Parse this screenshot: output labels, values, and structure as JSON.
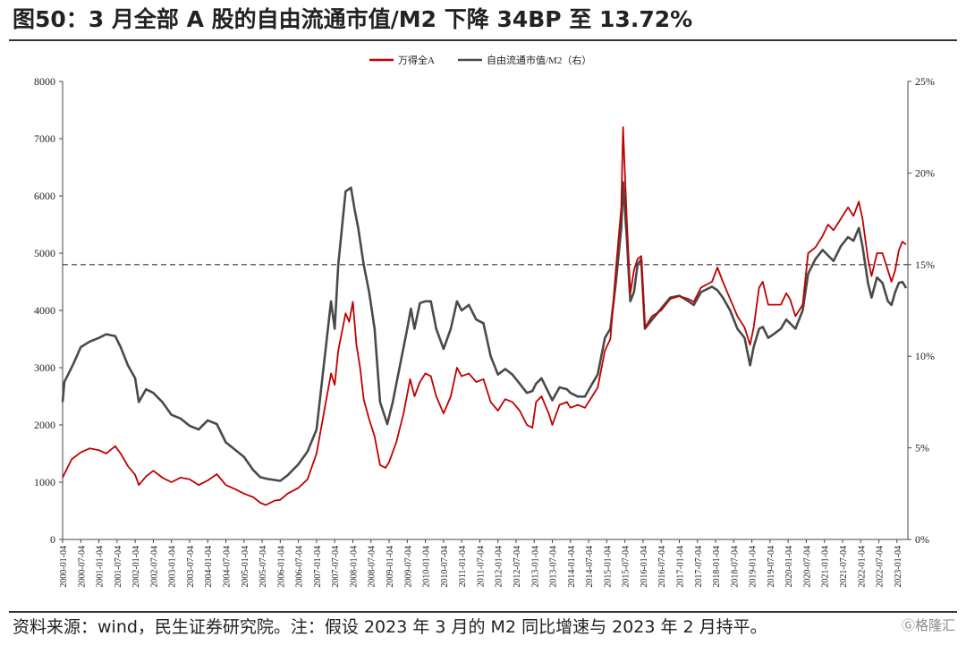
{
  "header": {
    "title": "图50：3 月全部 A 股的自由流通市值/M2 下降 34BP 至 13.72%"
  },
  "footer": {
    "source": "资料来源：wind，民生证券研究院。注：假设 2023 年 3 月的 M2 同比增速与 2023 年 2 月持平。"
  },
  "watermark": "格隆汇",
  "chart_data": {
    "type": "line",
    "title": "图50：3 月全部 A 股的自由流通市值/M2 下降 34BP 至 13.72%",
    "legend_position": "top-center",
    "colors": {
      "wind_a": "#c00000",
      "ratio": "#4a4a4a",
      "reference": "#333333"
    },
    "x_tick_labels": [
      "2000-01-04",
      "2000-07-04",
      "2001-01-04",
      "2001-07-04",
      "2002-01-04",
      "2002-07-04",
      "2003-01-04",
      "2003-07-04",
      "2004-01-04",
      "2004-07-04",
      "2005-01-04",
      "2005-07-04",
      "2006-01-04",
      "2006-07-04",
      "2007-01-04",
      "2007-07-04",
      "2008-01-04",
      "2008-07-04",
      "2009-01-04",
      "2009-07-04",
      "2010-01-04",
      "2010-07-04",
      "2011-01-04",
      "2011-07-04",
      "2012-01-04",
      "2012-07-04",
      "2013-01-04",
      "2013-07-04",
      "2014-01-04",
      "2014-07-04",
      "2015-01-04",
      "2015-07-04",
      "2016-01-04",
      "2016-07-04",
      "2017-01-04",
      "2017-07-04",
      "2018-01-04",
      "2018-07-04",
      "2019-01-04",
      "2019-07-04",
      "2020-01-04",
      "2020-07-04",
      "2021-01-04",
      "2021-07-04",
      "2022-01-04",
      "2022-07-04",
      "2023-01-04"
    ],
    "y_left": {
      "min": 0,
      "max": 8000,
      "ticks": [
        "0",
        "1000",
        "2000",
        "3000",
        "4000",
        "5000",
        "6000",
        "7000",
        "8000"
      ]
    },
    "y_right": {
      "min": 0,
      "max": 25,
      "ticks": [
        "0%",
        "5%",
        "10%",
        "15%",
        "20%",
        "25%"
      ]
    },
    "reference_line": {
      "axis": "right",
      "value": 15
    },
    "series": [
      {
        "name": "万得全A",
        "axis": "left",
        "points": [
          [
            2000.0,
            1080
          ],
          [
            2000.25,
            1400
          ],
          [
            2000.5,
            1520
          ],
          [
            2000.75,
            1590
          ],
          [
            2001.0,
            1560
          ],
          [
            2001.2,
            1500
          ],
          [
            2001.45,
            1630
          ],
          [
            2001.6,
            1500
          ],
          [
            2001.8,
            1280
          ],
          [
            2002.0,
            1130
          ],
          [
            2002.1,
            950
          ],
          [
            2002.3,
            1100
          ],
          [
            2002.5,
            1200
          ],
          [
            2002.75,
            1080
          ],
          [
            2003.0,
            1000
          ],
          [
            2003.25,
            1080
          ],
          [
            2003.5,
            1050
          ],
          [
            2003.75,
            950
          ],
          [
            2004.0,
            1030
          ],
          [
            2004.25,
            1140
          ],
          [
            2004.5,
            950
          ],
          [
            2004.75,
            880
          ],
          [
            2005.0,
            800
          ],
          [
            2005.25,
            740
          ],
          [
            2005.45,
            640
          ],
          [
            2005.6,
            600
          ],
          [
            2005.85,
            680
          ],
          [
            2006.0,
            690
          ],
          [
            2006.2,
            800
          ],
          [
            2006.5,
            900
          ],
          [
            2006.75,
            1050
          ],
          [
            2007.0,
            1500
          ],
          [
            2007.2,
            2200
          ],
          [
            2007.4,
            2900
          ],
          [
            2007.5,
            2700
          ],
          [
            2007.6,
            3300
          ],
          [
            2007.8,
            3950
          ],
          [
            2007.9,
            3800
          ],
          [
            2008.0,
            4150
          ],
          [
            2008.1,
            3400
          ],
          [
            2008.2,
            3000
          ],
          [
            2008.3,
            2450
          ],
          [
            2008.45,
            2100
          ],
          [
            2008.6,
            1800
          ],
          [
            2008.75,
            1300
          ],
          [
            2008.9,
            1250
          ],
          [
            2009.0,
            1350
          ],
          [
            2009.2,
            1700
          ],
          [
            2009.4,
            2200
          ],
          [
            2009.58,
            2800
          ],
          [
            2009.7,
            2500
          ],
          [
            2009.85,
            2750
          ],
          [
            2010.0,
            2900
          ],
          [
            2010.15,
            2850
          ],
          [
            2010.3,
            2500
          ],
          [
            2010.5,
            2200
          ],
          [
            2010.7,
            2500
          ],
          [
            2010.87,
            3000
          ],
          [
            2011.0,
            2850
          ],
          [
            2011.2,
            2900
          ],
          [
            2011.4,
            2750
          ],
          [
            2011.6,
            2800
          ],
          [
            2011.8,
            2400
          ],
          [
            2012.0,
            2250
          ],
          [
            2012.2,
            2450
          ],
          [
            2012.4,
            2400
          ],
          [
            2012.6,
            2250
          ],
          [
            2012.8,
            2000
          ],
          [
            2012.95,
            1950
          ],
          [
            2013.05,
            2400
          ],
          [
            2013.2,
            2500
          ],
          [
            2013.4,
            2200
          ],
          [
            2013.5,
            2000
          ],
          [
            2013.7,
            2350
          ],
          [
            2013.9,
            2400
          ],
          [
            2014.0,
            2300
          ],
          [
            2014.2,
            2350
          ],
          [
            2014.4,
            2300
          ],
          [
            2014.6,
            2500
          ],
          [
            2014.75,
            2650
          ],
          [
            2014.95,
            3300
          ],
          [
            2015.1,
            3500
          ],
          [
            2015.25,
            4700
          ],
          [
            2015.4,
            5800
          ],
          [
            2015.45,
            7200
          ],
          [
            2015.55,
            5600
          ],
          [
            2015.65,
            4300
          ],
          [
            2015.75,
            4700
          ],
          [
            2015.85,
            4900
          ],
          [
            2015.95,
            4950
          ],
          [
            2016.05,
            3700
          ],
          [
            2016.25,
            3900
          ],
          [
            2016.5,
            4000
          ],
          [
            2016.75,
            4200
          ],
          [
            2017.0,
            4250
          ],
          [
            2017.25,
            4200
          ],
          [
            2017.4,
            4150
          ],
          [
            2017.6,
            4400
          ],
          [
            2017.9,
            4500
          ],
          [
            2018.05,
            4750
          ],
          [
            2018.2,
            4500
          ],
          [
            2018.4,
            4200
          ],
          [
            2018.6,
            3900
          ],
          [
            2018.8,
            3700
          ],
          [
            2018.95,
            3400
          ],
          [
            2019.05,
            3700
          ],
          [
            2019.2,
            4400
          ],
          [
            2019.3,
            4500
          ],
          [
            2019.45,
            4100
          ],
          [
            2019.6,
            4100
          ],
          [
            2019.8,
            4100
          ],
          [
            2019.95,
            4300
          ],
          [
            2020.05,
            4200
          ],
          [
            2020.2,
            3900
          ],
          [
            2020.4,
            4100
          ],
          [
            2020.55,
            5000
          ],
          [
            2020.75,
            5100
          ],
          [
            2020.95,
            5300
          ],
          [
            2021.1,
            5500
          ],
          [
            2021.25,
            5400
          ],
          [
            2021.45,
            5600
          ],
          [
            2021.65,
            5800
          ],
          [
            2021.8,
            5650
          ],
          [
            2021.95,
            5900
          ],
          [
            2022.05,
            5600
          ],
          [
            2022.2,
            4900
          ],
          [
            2022.3,
            4600
          ],
          [
            2022.45,
            5000
          ],
          [
            2022.6,
            5000
          ],
          [
            2022.75,
            4700
          ],
          [
            2022.85,
            4500
          ],
          [
            2022.95,
            4700
          ],
          [
            2023.05,
            5050
          ],
          [
            2023.15,
            5200
          ],
          [
            2023.25,
            5150
          ]
        ]
      },
      {
        "name": "自由流通市值/M2（右）",
        "axis": "right",
        "points": [
          [
            2000.0,
            7.5
          ],
          [
            2000.05,
            8.6
          ],
          [
            2000.3,
            9.6
          ],
          [
            2000.5,
            10.5
          ],
          [
            2000.75,
            10.8
          ],
          [
            2001.0,
            11.0
          ],
          [
            2001.2,
            11.2
          ],
          [
            2001.45,
            11.1
          ],
          [
            2001.6,
            10.5
          ],
          [
            2001.8,
            9.5
          ],
          [
            2002.0,
            8.8
          ],
          [
            2002.1,
            7.5
          ],
          [
            2002.3,
            8.2
          ],
          [
            2002.5,
            8.0
          ],
          [
            2002.75,
            7.5
          ],
          [
            2003.0,
            6.8
          ],
          [
            2003.25,
            6.6
          ],
          [
            2003.5,
            6.2
          ],
          [
            2003.75,
            6.0
          ],
          [
            2004.0,
            6.5
          ],
          [
            2004.25,
            6.3
          ],
          [
            2004.5,
            5.3
          ],
          [
            2004.75,
            4.9
          ],
          [
            2005.0,
            4.5
          ],
          [
            2005.25,
            3.8
          ],
          [
            2005.45,
            3.4
          ],
          [
            2005.65,
            3.3
          ],
          [
            2006.0,
            3.2
          ],
          [
            2006.2,
            3.5
          ],
          [
            2006.5,
            4.1
          ],
          [
            2006.75,
            4.8
          ],
          [
            2007.0,
            6.0
          ],
          [
            2007.2,
            9.5
          ],
          [
            2007.4,
            13.0
          ],
          [
            2007.5,
            11.5
          ],
          [
            2007.6,
            15.0
          ],
          [
            2007.8,
            19.0
          ],
          [
            2007.95,
            19.2
          ],
          [
            2008.05,
            18.0
          ],
          [
            2008.15,
            17.0
          ],
          [
            2008.3,
            15.0
          ],
          [
            2008.45,
            13.5
          ],
          [
            2008.6,
            11.5
          ],
          [
            2008.75,
            7.5
          ],
          [
            2008.95,
            6.3
          ],
          [
            2009.1,
            7.5
          ],
          [
            2009.3,
            9.5
          ],
          [
            2009.5,
            11.5
          ],
          [
            2009.6,
            12.6
          ],
          [
            2009.7,
            11.5
          ],
          [
            2009.85,
            12.9
          ],
          [
            2010.0,
            13.0
          ],
          [
            2010.15,
            13.0
          ],
          [
            2010.3,
            11.5
          ],
          [
            2010.5,
            10.4
          ],
          [
            2010.7,
            11.5
          ],
          [
            2010.87,
            13.0
          ],
          [
            2011.0,
            12.5
          ],
          [
            2011.2,
            12.8
          ],
          [
            2011.4,
            12.0
          ],
          [
            2011.6,
            11.8
          ],
          [
            2011.8,
            10.0
          ],
          [
            2012.0,
            9.0
          ],
          [
            2012.2,
            9.3
          ],
          [
            2012.4,
            9.0
          ],
          [
            2012.6,
            8.5
          ],
          [
            2012.8,
            8.0
          ],
          [
            2012.95,
            8.1
          ],
          [
            2013.05,
            8.5
          ],
          [
            2013.2,
            8.8
          ],
          [
            2013.4,
            8.0
          ],
          [
            2013.5,
            7.6
          ],
          [
            2013.7,
            8.3
          ],
          [
            2013.9,
            8.2
          ],
          [
            2014.0,
            8.0
          ],
          [
            2014.2,
            7.8
          ],
          [
            2014.4,
            7.8
          ],
          [
            2014.6,
            8.5
          ],
          [
            2014.75,
            9.0
          ],
          [
            2014.95,
            11.0
          ],
          [
            2015.1,
            11.5
          ],
          [
            2015.25,
            14.0
          ],
          [
            2015.4,
            17.0
          ],
          [
            2015.45,
            19.5
          ],
          [
            2015.55,
            16.5
          ],
          [
            2015.65,
            13.0
          ],
          [
            2015.75,
            13.5
          ],
          [
            2015.85,
            15.0
          ],
          [
            2015.95,
            15.3
          ],
          [
            2016.05,
            11.5
          ],
          [
            2016.25,
            12.0
          ],
          [
            2016.5,
            12.6
          ],
          [
            2016.75,
            13.2
          ],
          [
            2017.0,
            13.3
          ],
          [
            2017.25,
            13.0
          ],
          [
            2017.4,
            12.8
          ],
          [
            2017.6,
            13.5
          ],
          [
            2017.9,
            13.8
          ],
          [
            2018.05,
            13.6
          ],
          [
            2018.2,
            13.2
          ],
          [
            2018.4,
            12.5
          ],
          [
            2018.6,
            11.5
          ],
          [
            2018.8,
            11.0
          ],
          [
            2018.95,
            9.5
          ],
          [
            2019.05,
            10.5
          ],
          [
            2019.2,
            11.5
          ],
          [
            2019.3,
            11.6
          ],
          [
            2019.45,
            11.0
          ],
          [
            2019.6,
            11.2
          ],
          [
            2019.8,
            11.5
          ],
          [
            2019.95,
            12.0
          ],
          [
            2020.05,
            11.8
          ],
          [
            2020.2,
            11.5
          ],
          [
            2020.4,
            12.5
          ],
          [
            2020.55,
            14.5
          ],
          [
            2020.75,
            15.3
          ],
          [
            2020.95,
            15.8
          ],
          [
            2021.1,
            15.5
          ],
          [
            2021.25,
            15.2
          ],
          [
            2021.45,
            16.0
          ],
          [
            2021.65,
            16.5
          ],
          [
            2021.8,
            16.3
          ],
          [
            2021.95,
            17.0
          ],
          [
            2022.05,
            16.0
          ],
          [
            2022.2,
            14.0
          ],
          [
            2022.3,
            13.2
          ],
          [
            2022.45,
            14.3
          ],
          [
            2022.6,
            14.0
          ],
          [
            2022.75,
            13.0
          ],
          [
            2022.85,
            12.8
          ],
          [
            2022.95,
            13.5
          ],
          [
            2023.05,
            14.0
          ],
          [
            2023.15,
            14.06
          ],
          [
            2023.25,
            13.72
          ]
        ]
      }
    ]
  }
}
